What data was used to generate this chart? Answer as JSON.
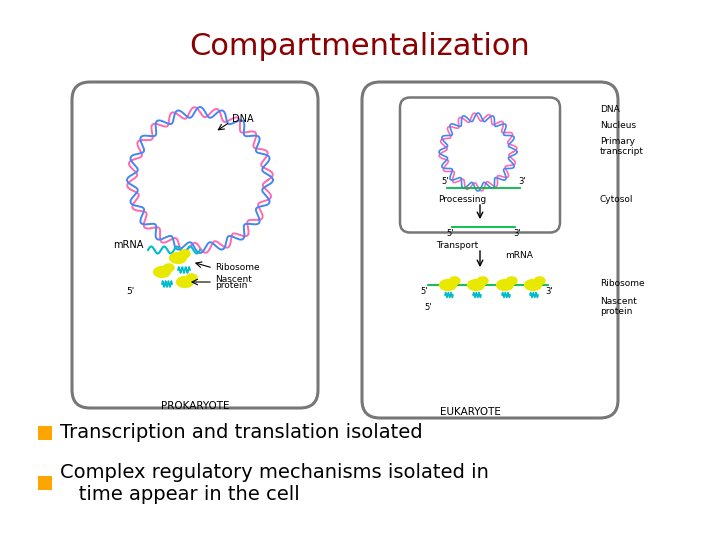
{
  "title": "Compartmentalization",
  "title_color": "#8B0000",
  "title_fontsize": 22,
  "title_font": "Comic Sans MS",
  "bullet_color": "#FFA500",
  "bullet_text_color": "#000000",
  "bullet_fontsize": 14,
  "bullet_font": "Comic Sans MS",
  "bullets": [
    "Transcription and translation isolated",
    "Complex regulatory mechanisms isolated in\n   time appear in the cell"
  ],
  "background_color": "#FFFFFF"
}
